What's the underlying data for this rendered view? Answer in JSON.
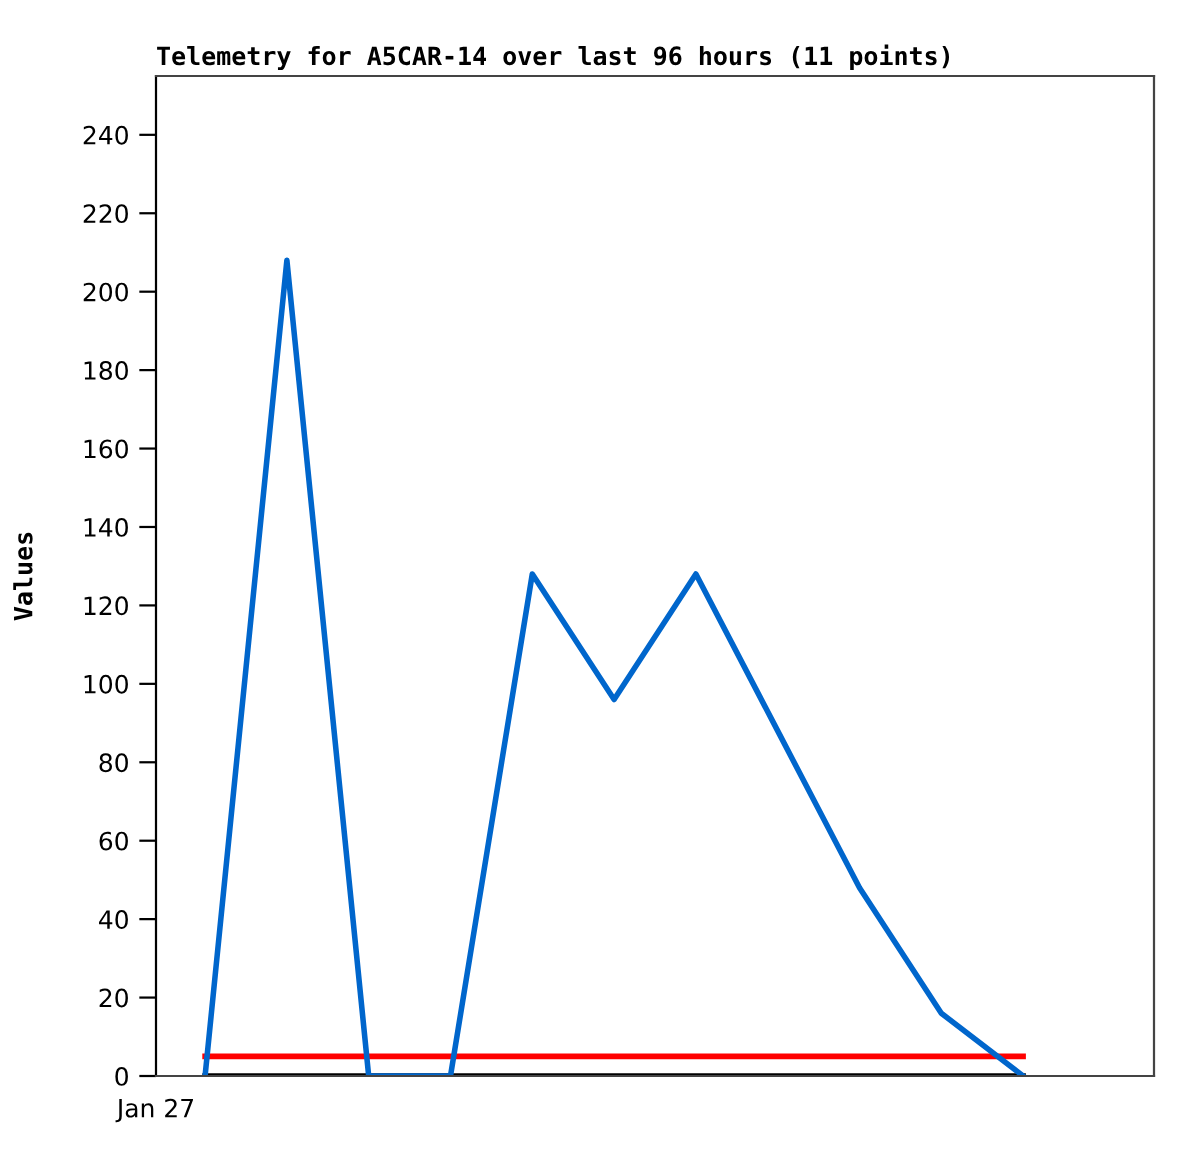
{
  "chart_data": {
    "type": "line",
    "title": "Telemetry for A5CAR-14 over last 96 hours (11 points)",
    "ylabel": "Values",
    "categories": [
      null,
      null,
      null,
      null,
      null,
      null,
      null,
      null,
      null,
      null,
      null
    ],
    "annotations": [
      "Jan 27"
    ],
    "ylim": [
      0,
      255
    ],
    "yticks": [
      0,
      20,
      40,
      60,
      80,
      100,
      120,
      140,
      160,
      180,
      200,
      220,
      240
    ],
    "grid": false,
    "legend": false,
    "marker": "none",
    "series": [
      {
        "color": "#000000",
        "values": [
          0,
          0,
          0,
          0,
          0,
          0,
          0,
          0,
          0,
          0,
          0
        ]
      },
      {
        "color": "#ff0000",
        "values": [
          5,
          5,
          5,
          5,
          5,
          5,
          5,
          5,
          5,
          5,
          5
        ]
      },
      {
        "color": "#0066cc",
        "values": [
          0,
          208,
          0,
          0,
          128,
          96,
          128,
          88,
          48,
          16,
          0
        ]
      }
    ]
  }
}
